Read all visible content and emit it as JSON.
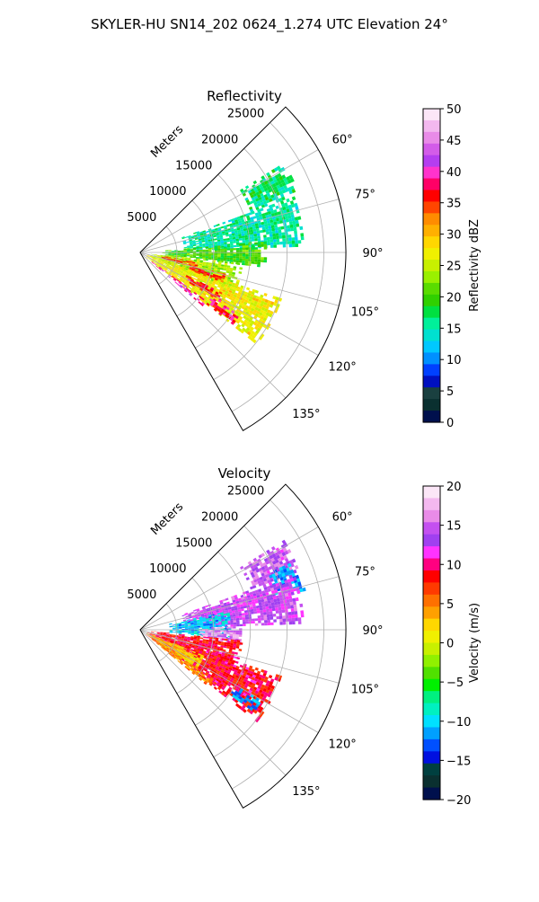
{
  "figure": {
    "title": "SKYLER-HU  SN14_202  0624_1.274 UTC Elevation 24°"
  },
  "chart_data": [
    {
      "type": "polar-sector",
      "title": "Reflectivity",
      "radial_label": "Meters",
      "radial_ticks": [
        5000,
        10000,
        15000,
        20000,
        25000
      ],
      "rlim": [
        0,
        28000
      ],
      "azimuth_range_deg": [
        45,
        150
      ],
      "azimuth_ticks_deg": [
        60,
        75,
        90,
        105,
        120,
        135
      ],
      "grid": true,
      "colorbar": {
        "label": "Reflectivity dBZ",
        "min": 0,
        "max": 50,
        "ticks": [
          0,
          5,
          10,
          15,
          20,
          25,
          30,
          35,
          40,
          45,
          50
        ]
      },
      "echo_regions": [
        {
          "az": [
            58,
            70
          ],
          "r": [
            16000,
            23000
          ],
          "value": 16
        },
        {
          "az": [
            70,
            88
          ],
          "r": [
            6000,
            22000
          ],
          "value": 15
        },
        {
          "az": [
            85,
            97
          ],
          "r": [
            3000,
            17000
          ],
          "value": 20
        },
        {
          "az": [
            96,
            112
          ],
          "r": [
            1500,
            14000
          ],
          "value": 24
        },
        {
          "az": [
            108,
            128
          ],
          "r": [
            1000,
            20000
          ],
          "value": 27
        },
        {
          "az": [
            99,
            106
          ],
          "r": [
            3000,
            8000
          ],
          "value": 35
        },
        {
          "az": [
            104,
            110
          ],
          "r": [
            7000,
            12000
          ],
          "value": 36
        },
        {
          "az": [
            116,
            122
          ],
          "r": [
            7000,
            12500
          ],
          "value": 37
        },
        {
          "az": [
            122,
            128
          ],
          "r": [
            11000,
            16000
          ],
          "value": 38
        },
        {
          "az": [
            126,
            130
          ],
          "r": [
            2000,
            11000
          ],
          "value": 40
        }
      ]
    },
    {
      "type": "polar-sector",
      "title": "Velocity",
      "radial_label": "Meters",
      "radial_ticks": [
        5000,
        10000,
        15000,
        20000,
        25000
      ],
      "rlim": [
        0,
        28000
      ],
      "azimuth_range_deg": [
        45,
        150
      ],
      "azimuth_ticks_deg": [
        60,
        75,
        90,
        105,
        120,
        135
      ],
      "grid": true,
      "colorbar": {
        "label": "Velocity (m/s)",
        "min": -20,
        "max": 20,
        "ticks": [
          -20,
          -15,
          -10,
          -5,
          0,
          5,
          10,
          15,
          20
        ]
      },
      "echo_regions": [
        {
          "az": [
            58,
            70
          ],
          "r": [
            16000,
            23000
          ],
          "value": 15
        },
        {
          "az": [
            66,
            76
          ],
          "r": [
            19000,
            23000
          ],
          "value": -12
        },
        {
          "az": [
            70,
            88
          ],
          "r": [
            6000,
            22000
          ],
          "value": 14
        },
        {
          "az": [
            78,
            96
          ],
          "r": [
            4000,
            12000
          ],
          "value": -11
        },
        {
          "az": [
            88,
            98
          ],
          "r": [
            8000,
            14000
          ],
          "value": 17
        },
        {
          "az": [
            96,
            112
          ],
          "r": [
            1500,
            14000
          ],
          "value": 9
        },
        {
          "az": [
            108,
            128
          ],
          "r": [
            1000,
            20000
          ],
          "value": 9
        },
        {
          "az": [
            112,
            126
          ],
          "r": [
            1000,
            9000
          ],
          "value": 2
        },
        {
          "az": [
            124,
            130
          ],
          "r": [
            2000,
            12000
          ],
          "value": 5
        },
        {
          "az": [
            120,
            126
          ],
          "r": [
            15000,
            19000
          ],
          "value": -12
        }
      ]
    }
  ]
}
